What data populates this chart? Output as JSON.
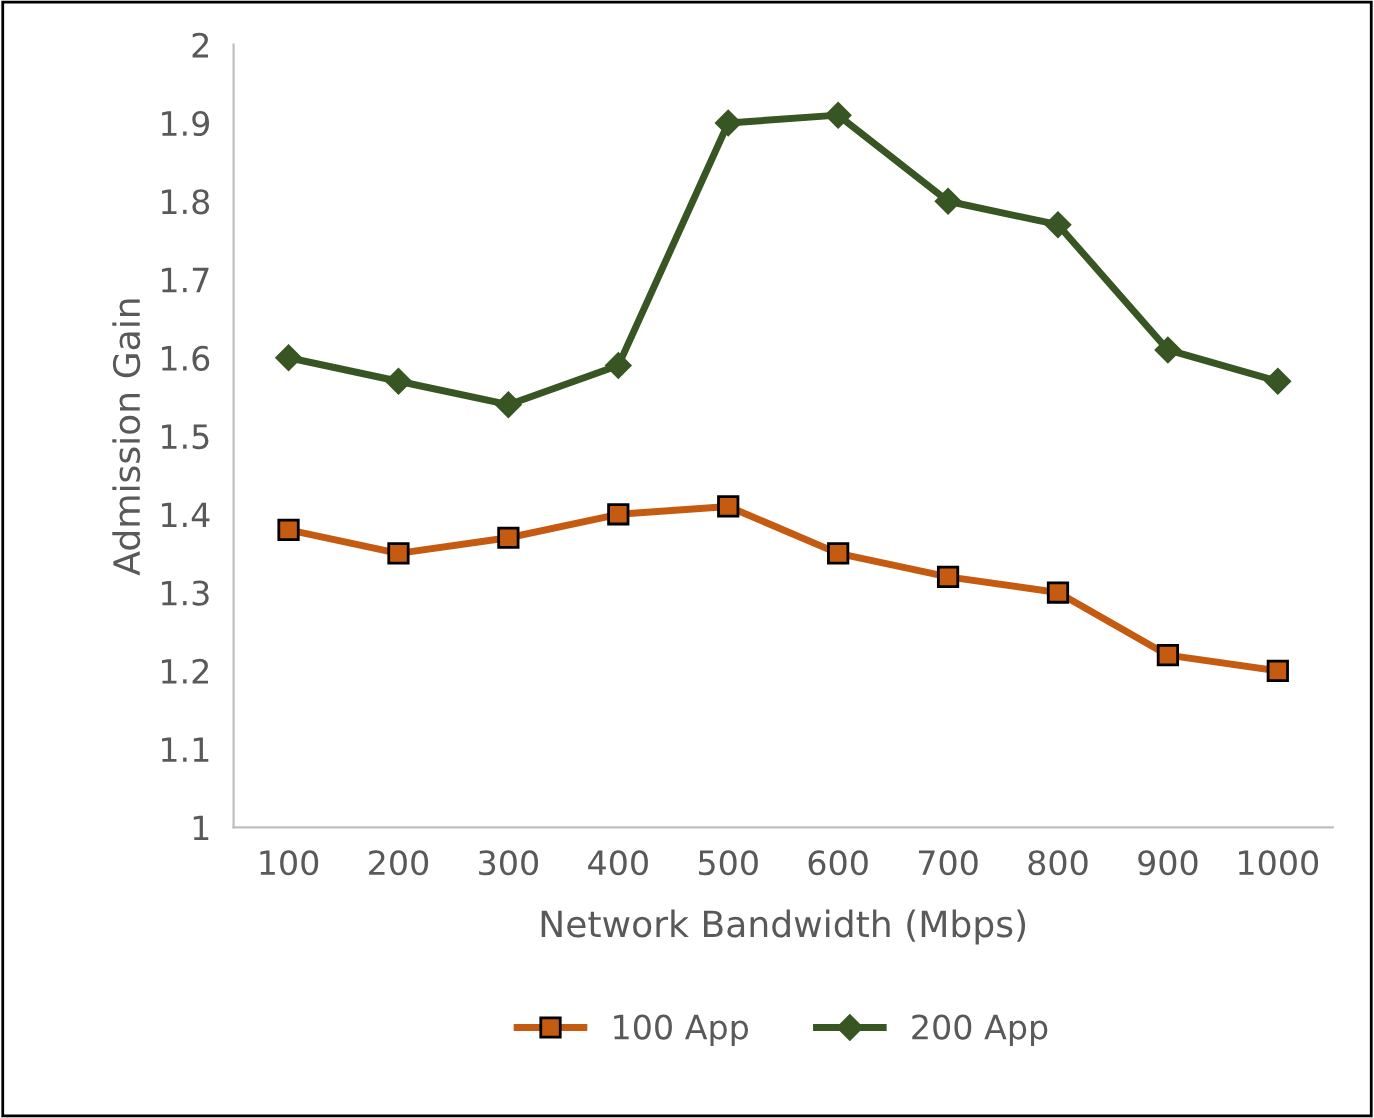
{
  "chart_data": {
    "type": "line",
    "xlabel": "Network Bandwidth (Mbps)",
    "ylabel": "Admission Gain",
    "categories": [
      "100",
      "200",
      "300",
      "400",
      "500",
      "600",
      "700",
      "800",
      "900",
      "1000"
    ],
    "series": [
      {
        "name": "100 App",
        "color": "#c55a11",
        "marker": "square",
        "values": [
          1.38,
          1.35,
          1.37,
          1.4,
          1.41,
          1.35,
          1.32,
          1.3,
          1.22,
          1.2
        ]
      },
      {
        "name": "200 App",
        "color": "#375623",
        "marker": "diamond",
        "values": [
          1.6,
          1.57,
          1.54,
          1.59,
          1.9,
          1.91,
          1.8,
          1.77,
          1.61,
          1.57
        ]
      }
    ],
    "ylim": [
      1,
      2
    ],
    "yticks": [
      1,
      1.1,
      1.2,
      1.3,
      1.4,
      1.5,
      1.6,
      1.7,
      1.8,
      1.9,
      2
    ],
    "grid": false,
    "legend": "bottom",
    "line_style": "solid"
  }
}
